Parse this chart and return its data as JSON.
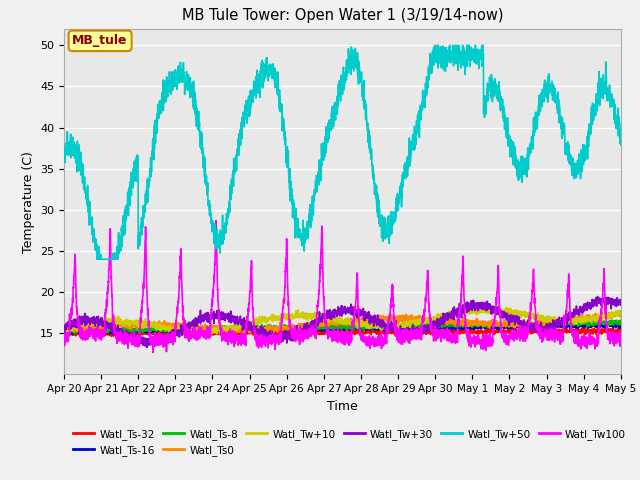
{
  "title": "MB Tule Tower: Open Water 1 (3/19/14-now)",
  "xlabel": "Time",
  "ylabel": "Temperature (C)",
  "ylim": [
    10,
    52
  ],
  "legend_label": "MB_tule",
  "series": {
    "Watl_Ts-32": {
      "color": "#ff0000",
      "lw": 1.2
    },
    "Watl_Ts-16": {
      "color": "#0000cc",
      "lw": 1.2
    },
    "Watl_Ts-8": {
      "color": "#00bb00",
      "lw": 1.2
    },
    "Watl_Ts0": {
      "color": "#ff8800",
      "lw": 1.2
    },
    "Watl_Tw+10": {
      "color": "#cccc00",
      "lw": 1.2
    },
    "Watl_Tw+30": {
      "color": "#8800cc",
      "lw": 1.2
    },
    "Watl_Tw+50": {
      "color": "#00cccc",
      "lw": 1.2
    },
    "Watl_Tw100": {
      "color": "#ff00ff",
      "lw": 1.2
    }
  },
  "plot_bg": "#e8e8e8",
  "fig_bg": "#f0f0f0",
  "grid_color": "white",
  "xtick_labels": [
    "Apr 20",
    "Apr 21",
    "Apr 22",
    "Apr 23",
    "Apr 24",
    "Apr 25",
    "Apr 26",
    "Apr 27",
    "Apr 28",
    "Apr 29",
    "Apr 30",
    "May 1",
    "May 2",
    "May 3",
    "May 4",
    "May 5"
  ],
  "yticks": [
    15,
    20,
    25,
    30,
    35,
    40,
    45,
    50
  ]
}
